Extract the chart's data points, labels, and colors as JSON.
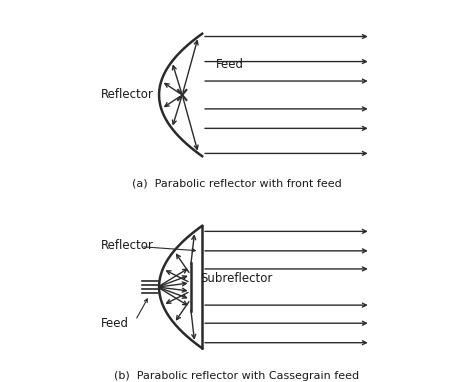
{
  "fig_width": 4.74,
  "fig_height": 3.82,
  "bg_color": "#ffffff",
  "line_color": "#2a2a2a",
  "text_color": "#1a1a1a",
  "caption_a": "(a)  Parabolic reflector with front feed",
  "caption_b": "(b)  Parabolic reflector with Cassegrain feed",
  "label_reflector_a": "Reflector",
  "label_feed_a": "Feed",
  "label_reflector_b": "Reflector",
  "label_subreflector_b": "Subreflector",
  "label_feed_b": "Feed",
  "arrow_mutation_scale": 7
}
